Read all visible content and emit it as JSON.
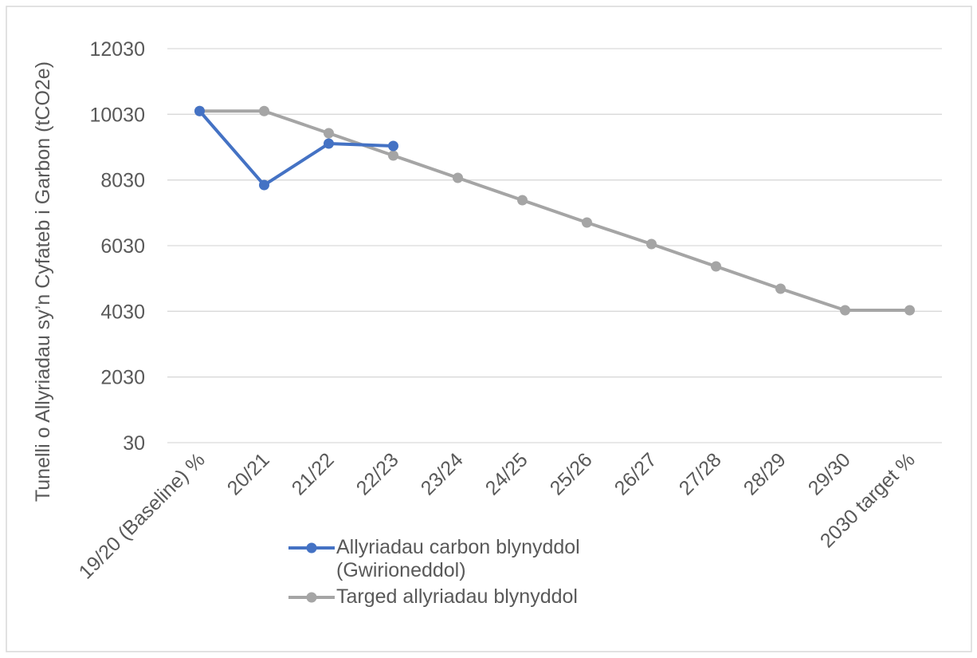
{
  "chart_data": {
    "type": "line",
    "y_label": "Tunelli o Allyriadau sy’n Cyfateb i Garbon (tCO2e)",
    "categories": [
      "19/20 (Baseline) %",
      "20/21",
      "21/22",
      "22/23",
      "23/24",
      "24/25",
      "25/26",
      "26/27",
      "27/28",
      "28/29",
      "29/30",
      "2030 target %"
    ],
    "series": [
      {
        "name": "Allyriadau carbon blynyddol (Gwirioneddol)",
        "color": "#4472c4",
        "values": [
          10130,
          7876,
          9139,
          9066,
          null,
          null,
          null,
          null,
          null,
          null,
          null,
          null
        ]
      },
      {
        "name": "Targed allyriadau blynyddol",
        "color": "#a5a5a5",
        "values": [
          10130,
          10130,
          9455,
          8775,
          8095,
          7415,
          6734,
          6079,
          5398,
          4718,
          4062,
          4062
        ]
      }
    ],
    "ylim": [
      30,
      12030
    ],
    "yticks": [
      30,
      2030,
      4030,
      6030,
      8030,
      10030,
      12030
    ],
    "grid": true,
    "legend": "bottom"
  }
}
